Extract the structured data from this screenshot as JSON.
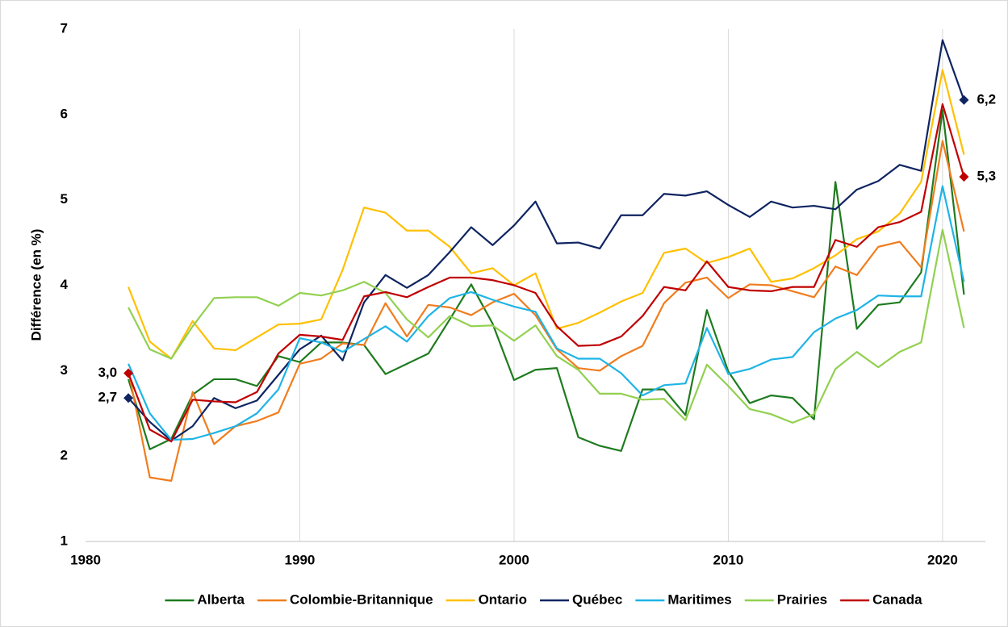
{
  "chart_data": {
    "type": "line",
    "y_label": "Différence (en %)",
    "x": [
      1982,
      1983,
      1984,
      1985,
      1986,
      1987,
      1988,
      1989,
      1990,
      1991,
      1992,
      1993,
      1994,
      1995,
      1996,
      1997,
      1998,
      1999,
      2000,
      2001,
      2002,
      2003,
      2004,
      2005,
      2006,
      2007,
      2008,
      2009,
      2010,
      2011,
      2012,
      2013,
      2014,
      2015,
      2016,
      2017,
      2018,
      2019,
      2020,
      2021
    ],
    "xlim": [
      1980,
      2022
    ],
    "xticks": [
      1980,
      1990,
      2000,
      2010,
      2020
    ],
    "ylim": [
      1,
      7
    ],
    "yticks": [
      1,
      2,
      3,
      4,
      5,
      6,
      7
    ],
    "grid": "x",
    "legend": "bottom",
    "series": [
      {
        "name": "Alberta",
        "color": "#1e7b1e",
        "values": [
          2.9,
          2.08,
          2.2,
          2.72,
          2.9,
          2.9,
          2.82,
          3.17,
          3.1,
          3.33,
          3.33,
          3.3,
          2.96,
          3.08,
          3.2,
          3.6,
          4.01,
          3.55,
          2.89,
          3.01,
          3.03,
          2.22,
          2.12,
          2.06,
          2.78,
          2.78,
          2.48,
          3.71,
          2.99,
          2.62,
          2.71,
          2.68,
          2.43,
          5.21,
          3.49,
          3.77,
          3.8,
          4.15,
          6.05,
          3.89
        ]
      },
      {
        "name": "Colombie-Britannique",
        "color": "#f07d1e",
        "values": [
          3.0,
          1.75,
          1.71,
          2.75,
          2.14,
          2.35,
          2.41,
          2.51,
          3.08,
          3.14,
          3.32,
          3.3,
          3.79,
          3.4,
          3.77,
          3.74,
          3.65,
          3.8,
          3.9,
          3.65,
          3.25,
          3.03,
          3.0,
          3.17,
          3.29,
          3.79,
          4.03,
          4.09,
          3.85,
          4.01,
          4.0,
          3.93,
          3.86,
          4.22,
          4.12,
          4.45,
          4.51,
          4.21,
          5.69,
          4.63
        ]
      },
      {
        "name": "Ontario",
        "color": "#ffc000",
        "values": [
          3.98,
          3.34,
          3.14,
          3.58,
          3.26,
          3.24,
          3.39,
          3.54,
          3.55,
          3.6,
          4.18,
          4.91,
          4.85,
          4.64,
          4.64,
          4.45,
          4.14,
          4.2,
          4.0,
          4.14,
          3.49,
          3.56,
          3.68,
          3.81,
          3.91,
          4.38,
          4.43,
          4.26,
          4.33,
          4.43,
          4.04,
          4.08,
          4.2,
          4.35,
          4.54,
          4.63,
          4.84,
          5.21,
          6.52,
          5.53
        ]
      },
      {
        "name": "Québec",
        "color": "#0f2461",
        "values": [
          2.68,
          2.4,
          2.18,
          2.35,
          2.68,
          2.56,
          2.65,
          2.95,
          3.25,
          3.41,
          3.12,
          3.8,
          4.12,
          3.97,
          4.12,
          4.39,
          4.68,
          4.47,
          4.7,
          4.98,
          4.49,
          4.5,
          4.43,
          4.82,
          4.82,
          5.07,
          5.05,
          5.1,
          4.94,
          4.8,
          4.98,
          4.91,
          4.93,
          4.89,
          5.12,
          5.22,
          5.41,
          5.34,
          6.87,
          6.17
        ],
        "value_labels": [
          "2,7",
          null,
          null,
          null,
          null,
          null,
          null,
          null,
          null,
          null,
          null,
          null,
          null,
          null,
          null,
          null,
          null,
          null,
          null,
          null,
          null,
          null,
          null,
          null,
          null,
          null,
          null,
          null,
          null,
          null,
          null,
          null,
          null,
          null,
          null,
          null,
          null,
          null,
          null,
          "6,2"
        ]
      },
      {
        "name": "Maritimes",
        "color": "#1eb4e6",
        "values": [
          3.08,
          2.5,
          2.19,
          2.2,
          2.27,
          2.35,
          2.5,
          2.78,
          3.38,
          3.33,
          3.22,
          3.37,
          3.52,
          3.34,
          3.64,
          3.85,
          3.92,
          3.83,
          3.75,
          3.69,
          3.26,
          3.14,
          3.14,
          2.97,
          2.71,
          2.83,
          2.85,
          3.5,
          2.96,
          3.02,
          3.13,
          3.16,
          3.45,
          3.61,
          3.71,
          3.88,
          3.87,
          3.87,
          5.16,
          4.04
        ]
      },
      {
        "name": "Prairies",
        "color": "#92d050",
        "values": [
          3.74,
          3.25,
          3.14,
          3.52,
          3.85,
          3.86,
          3.86,
          3.76,
          3.91,
          3.88,
          3.94,
          4.04,
          3.91,
          3.6,
          3.39,
          3.64,
          3.52,
          3.53,
          3.35,
          3.53,
          3.17,
          3.01,
          2.73,
          2.73,
          2.66,
          2.67,
          2.42,
          3.07,
          2.82,
          2.55,
          2.49,
          2.39,
          2.49,
          3.02,
          3.22,
          3.04,
          3.22,
          3.33,
          4.65,
          3.5
        ]
      },
      {
        "name": "Canada",
        "color": "#c00000",
        "values": [
          2.97,
          2.31,
          2.17,
          2.66,
          2.64,
          2.63,
          2.75,
          3.2,
          3.42,
          3.4,
          3.36,
          3.87,
          3.92,
          3.86,
          3.98,
          4.09,
          4.09,
          4.06,
          4.0,
          3.91,
          3.52,
          3.29,
          3.3,
          3.4,
          3.64,
          3.98,
          3.94,
          4.28,
          3.98,
          3.94,
          3.93,
          3.98,
          3.98,
          4.53,
          4.45,
          4.68,
          4.74,
          4.86,
          6.12,
          5.27
        ],
        "value_labels": [
          "3,0",
          null,
          null,
          null,
          null,
          null,
          null,
          null,
          null,
          null,
          null,
          null,
          null,
          null,
          null,
          null,
          null,
          null,
          null,
          null,
          null,
          null,
          null,
          null,
          null,
          null,
          null,
          null,
          null,
          null,
          null,
          null,
          null,
          null,
          null,
          null,
          null,
          null,
          null,
          "5,3"
        ]
      }
    ]
  }
}
